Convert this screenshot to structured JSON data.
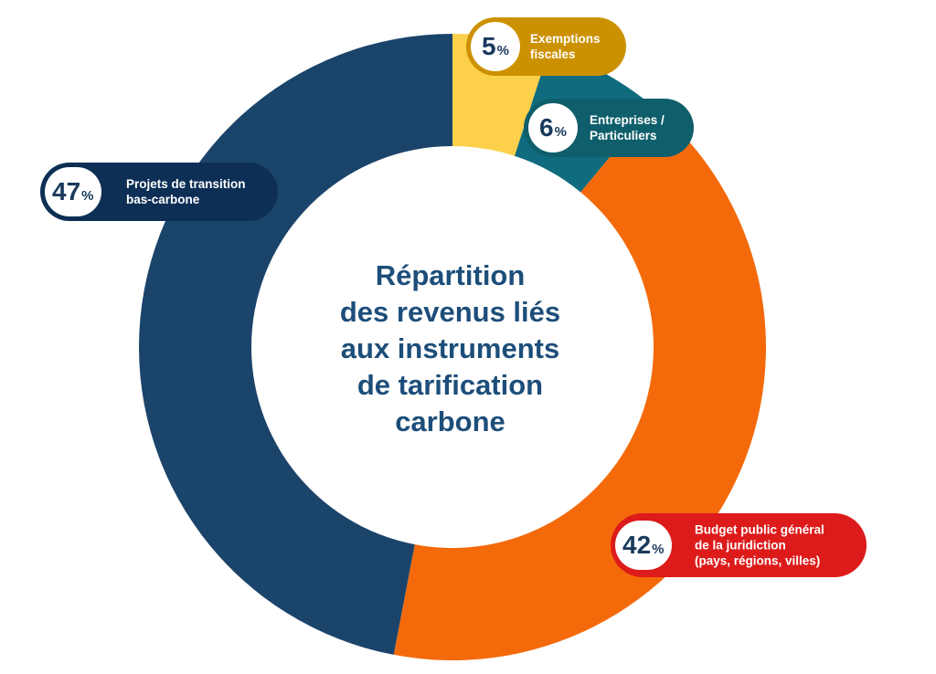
{
  "chart_data": {
    "type": "pie",
    "title": "Répartition des revenus liés aux instruments de tarification carbone",
    "title_lines": [
      "Répartition",
      "des revenus liés",
      "aux instruments",
      "de tarification",
      "carbone"
    ],
    "slices": [
      {
        "label": "Exemptions fiscales",
        "label_lines": [
          "Exemptions",
          "fiscales"
        ],
        "value": 5,
        "value_text": "5",
        "unit": "%",
        "color": "#fcd04a",
        "badge_color": "#cc9100"
      },
      {
        "label": "Entreprises / Particuliers",
        "label_lines": [
          "Entreprises /",
          "Particuliers"
        ],
        "value": 6,
        "value_text": "6",
        "unit": "%",
        "color": "#0f6b7d",
        "badge_color": "#0f5e6b"
      },
      {
        "label": "Budget public général de la juridiction (pays, régions, villes)",
        "label_lines": [
          "Budget public général",
          "de la juridiction",
          "(pays, régions, villes)"
        ],
        "value": 42,
        "value_text": "42",
        "unit": "%",
        "color": "#f46a0b",
        "badge_color": "#dd1b1b"
      },
      {
        "label": "Projets de transition bas-carbone",
        "label_lines": [
          "Projets de transition",
          "bas-carbone"
        ],
        "value": 47,
        "value_text": "47",
        "unit": "%",
        "color": "#1b446b",
        "badge_color": "#0d2f55"
      }
    ]
  }
}
